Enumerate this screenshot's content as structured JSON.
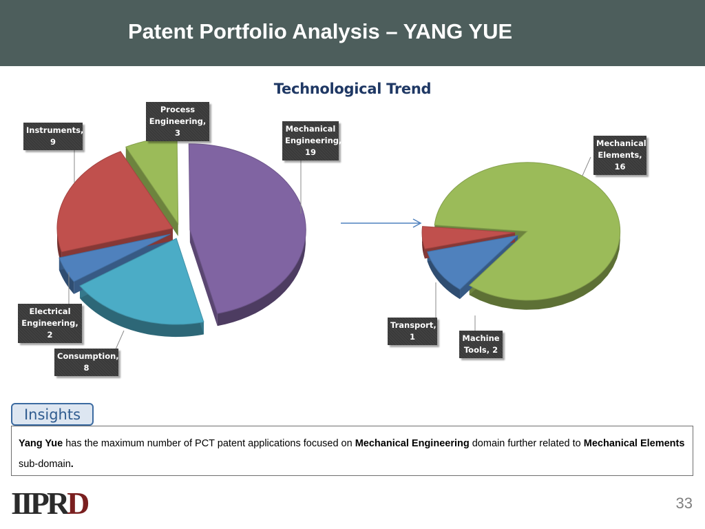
{
  "slide": {
    "title": "Patent Portfolio Analysis – YANG YUE",
    "page_number": "33"
  },
  "chart_data": [
    {
      "type": "pie",
      "title": "Technological Trend",
      "slices": [
        {
          "label": "Mechanical Engineering",
          "value": 19,
          "color": "#8064a2"
        },
        {
          "label": "Consumption",
          "value": 8,
          "color": "#4bacc6"
        },
        {
          "label": "Electrical Engineering",
          "value": 2,
          "color": "#4f81bd"
        },
        {
          "label": "Instruments",
          "value": 9,
          "color": "#c0504d"
        },
        {
          "label": "Process Engineering",
          "value": 3,
          "color": "#9bbb59"
        }
      ],
      "data_labels": {
        "mech": [
          "Mechanical",
          "Engineering,",
          "19"
        ],
        "cons": [
          "Consumption,",
          "8"
        ],
        "elec": [
          "Electrical",
          "Engineering, 2"
        ],
        "inst": [
          "Instruments,",
          "9"
        ],
        "proc": [
          "Process",
          "Engineering, 3"
        ]
      }
    },
    {
      "type": "pie",
      "title": "",
      "slices": [
        {
          "label": "Mechanical Elements",
          "value": 16,
          "color": "#9bbb59"
        },
        {
          "label": "Machine Tools",
          "value": 2,
          "color": "#4f81bd"
        },
        {
          "label": "Transport",
          "value": 1,
          "color": "#c0504d"
        }
      ],
      "data_labels": {
        "melem": [
          "Mechanical",
          "Elements,",
          "16"
        ],
        "mtool": [
          "Machine",
          "Tools, 2"
        ],
        "trans": [
          "Transport,",
          "1"
        ]
      }
    }
  ],
  "insights": {
    "tab_label": "Insights",
    "parts": {
      "p1": "Yang Yue",
      "p2": " has the maximum number of PCT patent applications focused on ",
      "p3": "Mechanical Engineering",
      "p4": " domain further related to ",
      "p5": "Mechanical Elements",
      "p6": " sub-domain",
      "p7": "."
    }
  },
  "logo": {
    "text_a": "IIPR",
    "text_b": "D"
  },
  "colors": {
    "header_bg": "#4d5e5c",
    "chart_title": "#1f3864",
    "arrow": "#4f81bd"
  }
}
